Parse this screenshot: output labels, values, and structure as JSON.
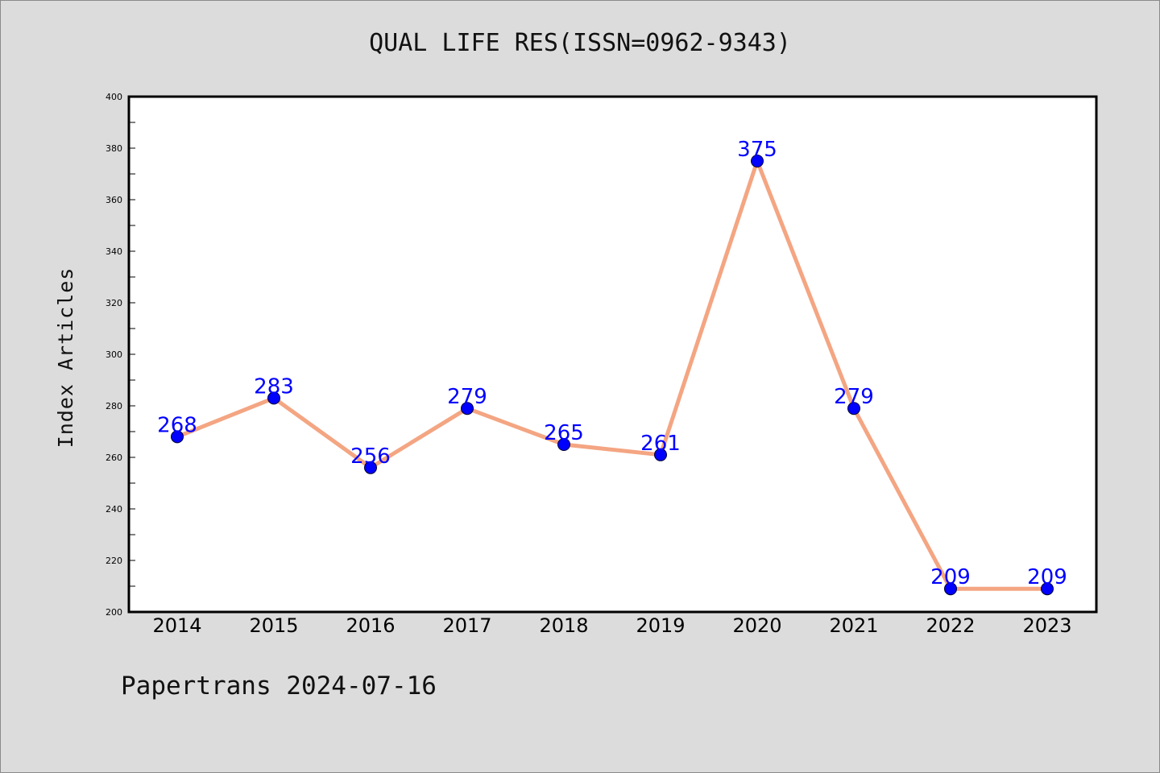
{
  "chart_data": {
    "type": "line",
    "title": "QUAL LIFE RES(ISSN=0962-9343)",
    "xlabel": "",
    "ylabel": "Index Articles",
    "categories": [
      "2014",
      "2015",
      "2016",
      "2017",
      "2018",
      "2019",
      "2020",
      "2021",
      "2022",
      "2023"
    ],
    "series": [
      {
        "values": [
          268,
          283,
          256,
          279,
          265,
          261,
          375,
          279,
          209,
          209
        ]
      }
    ],
    "ylim": [
      200,
      400
    ],
    "yticks": [
      200,
      220,
      240,
      260,
      280,
      300,
      320,
      340,
      360,
      380,
      400
    ],
    "grid": false,
    "data_labels": true,
    "line_color": "#f4a582",
    "marker_color": "#0000ff",
    "label_color": "#0000ff"
  },
  "footer": "Papertrans 2024-07-16"
}
